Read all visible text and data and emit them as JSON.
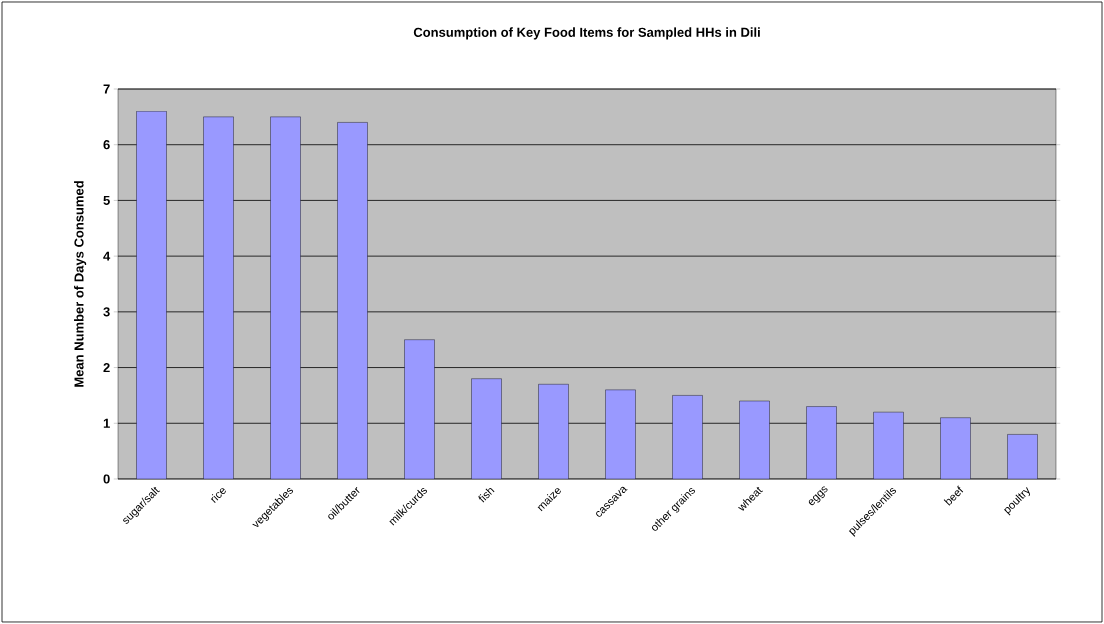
{
  "chart_data": {
    "type": "bar",
    "title": "Consumption of Key Food Items for Sampled HHs in Dili",
    "ylabel": "Mean Number of Days Consumed",
    "categories": [
      "sugar/salt",
      "rice",
      "vegetables",
      "oil/butter",
      "milk/curds",
      "fish",
      "maize",
      "cassava",
      "other grains",
      "wheat",
      "eggs",
      "pulses/lentils",
      "beef",
      "poultry"
    ],
    "values": [
      6.6,
      6.5,
      6.5,
      6.4,
      2.5,
      1.8,
      1.7,
      1.6,
      1.5,
      1.4,
      1.3,
      1.2,
      1.1,
      0.8
    ],
    "color": "#9999ff",
    "ylim": [
      0,
      7
    ],
    "yticks": [
      0,
      1,
      2,
      3,
      4,
      5,
      6,
      7
    ],
    "grid": "y"
  }
}
